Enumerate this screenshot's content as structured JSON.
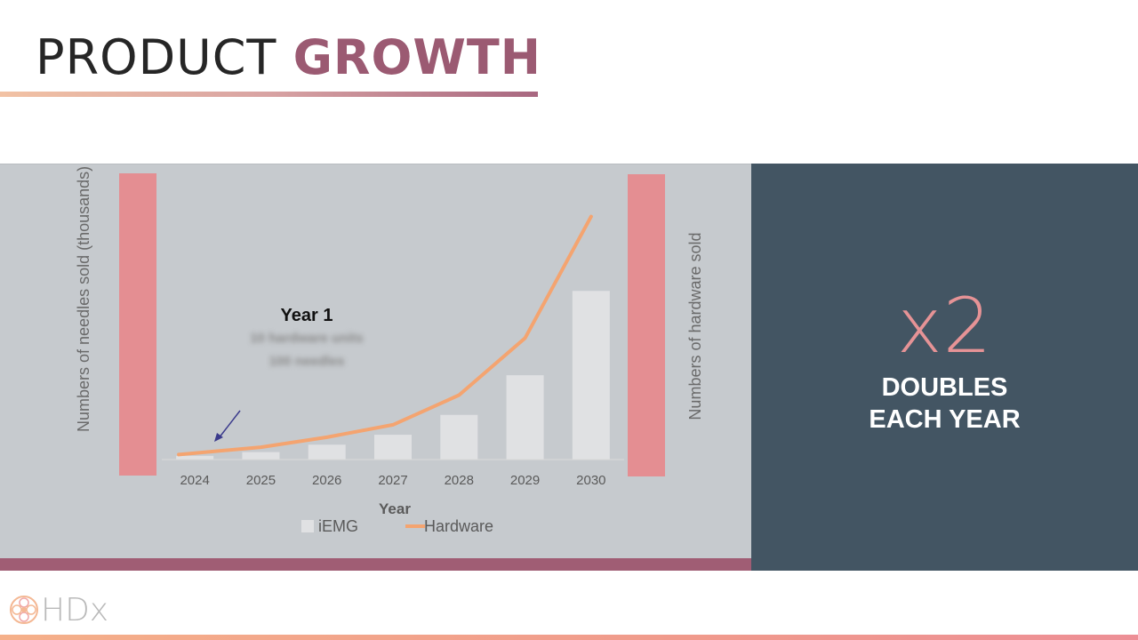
{
  "slide": {
    "title_main": "PRODUCT",
    "title_accent": "GROWTH",
    "multiplier": "x2",
    "caption_line1": "DOUBLES",
    "caption_line2": "EACH YEAR",
    "logo_text": "HDx"
  },
  "annotation": {
    "heading": "Year 1",
    "line1": "10 hardware units",
    "line2": "100 needles"
  },
  "colors": {
    "accent": "#9b5a72",
    "panel_dark": "#435563",
    "panel_light": "#c6cace",
    "highlight": "#e48e92",
    "line": "#f4a470",
    "bar": "#e0e1e3"
  },
  "chart_data": {
    "type": "bar",
    "title": "",
    "xlabel": "Year",
    "ylabel": "Numbers of needles sold (thousands)",
    "y2label": "Numbers of hardware sold",
    "categories": [
      "2024",
      "2025",
      "2026",
      "2027",
      "2028",
      "2029",
      "2030"
    ],
    "series": [
      {
        "name": "iEMG",
        "type": "bar",
        "values": [
          1.5,
          3,
          6,
          10,
          18,
          34,
          68
        ]
      },
      {
        "name": "Hardware",
        "type": "line",
        "values": [
          2,
          5,
          9,
          14,
          26,
          49,
          98
        ]
      }
    ],
    "ylim": [
      0,
      100
    ],
    "legend": "bottom"
  }
}
